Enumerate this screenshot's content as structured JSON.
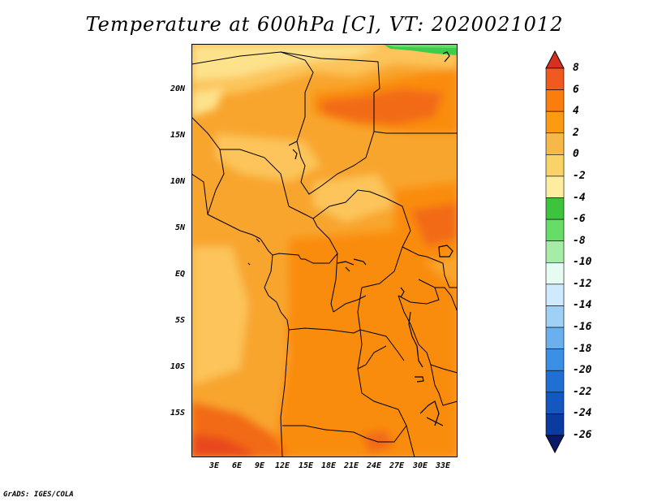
{
  "title": "Temperature at 600hPa [C], VT: 2020021012",
  "credit": "GrADS: IGES/COLA",
  "lat_labels": [
    "20N",
    "15N",
    "10N",
    "5N",
    "EQ",
    "5S",
    "10S",
    "15S"
  ],
  "lon_labels": [
    "3E",
    "6E",
    "9E",
    "12E",
    "15E",
    "18E",
    "21E",
    "24E",
    "27E",
    "30E",
    "33E"
  ],
  "colorbar": {
    "labels": [
      "8",
      "6",
      "4",
      "2",
      "0",
      "-2",
      "-4",
      "-6",
      "-8",
      "-10",
      "-12",
      "-14",
      "-16",
      "-18",
      "-20",
      "-22",
      "-24",
      "-26"
    ],
    "colors": [
      "#d7301f",
      "#f05a1e",
      "#fa7d0e",
      "#fc9b12",
      "#f7b84a",
      "#fad368",
      "#fcee9e",
      "#3cc43c",
      "#66dd66",
      "#a6eca6",
      "#e6fbf2",
      "#cfe9ff",
      "#9fd0f6",
      "#6ab0ee",
      "#3a90e4",
      "#1f6fd4",
      "#1357c0",
      "#0b3aa0",
      "#0a1a6a",
      "#e0e0ff"
    ]
  },
  "colors": {
    "field_base": "#f8a52e",
    "field_warm": "#fa8c0f",
    "field_hot": "#f26a14",
    "field_hottest": "#e84a1a",
    "field_cool": "#fcc45a",
    "field_cooler": "#fde28c",
    "field_green": "#3dcc4c"
  }
}
